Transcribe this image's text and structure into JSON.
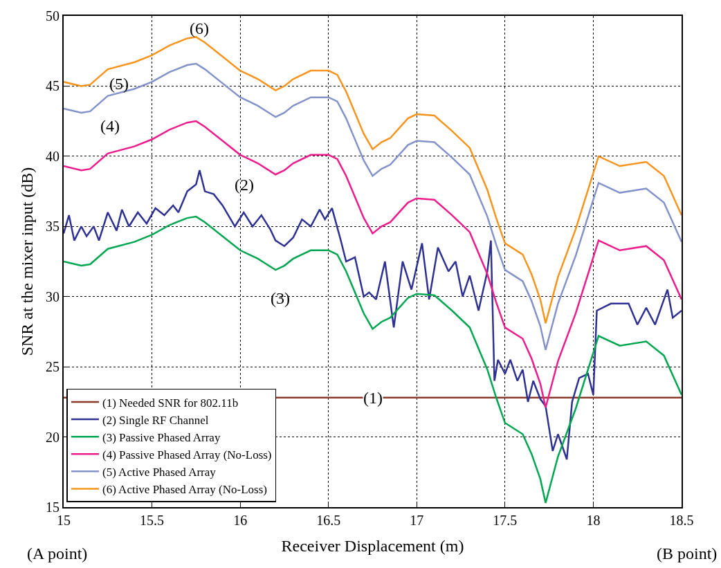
{
  "chart_data": {
    "type": "line",
    "xlabel": "Receiver Displacement (m)",
    "ylabel": "SNR at the mixer input (dB)",
    "x": [
      15.0,
      15.1,
      15.15,
      15.25,
      15.4,
      15.5,
      15.6,
      15.7,
      15.75,
      15.8,
      15.9,
      16.0,
      16.05,
      16.1,
      16.15,
      16.2,
      16.25,
      16.3,
      16.4,
      16.5,
      16.55,
      16.6,
      16.7,
      16.75,
      16.8,
      16.85,
      16.95,
      17.0,
      17.1,
      17.2,
      17.3,
      17.4,
      17.45,
      17.5,
      17.6,
      17.65,
      17.7,
      17.73,
      17.8,
      17.9,
      18.0,
      18.03,
      18.15,
      18.3,
      18.4,
      18.5
    ],
    "series": [
      {
        "name": "(1) Needed SNR for 802.11b",
        "color": "#8b3a2a",
        "x": [
          15.0,
          18.5
        ],
        "values": [
          22.8,
          22.8
        ]
      },
      {
        "name": "(2) Single RF Channel",
        "color": "#2e3192",
        "x": [
          15.0,
          15.03,
          15.06,
          15.1,
          15.13,
          15.17,
          15.2,
          15.25,
          15.3,
          15.33,
          15.37,
          15.42,
          15.47,
          15.52,
          15.57,
          15.62,
          15.65,
          15.7,
          15.75,
          15.77,
          15.8,
          15.85,
          15.9,
          15.97,
          16.02,
          16.07,
          16.12,
          16.17,
          16.2,
          16.25,
          16.3,
          16.35,
          16.4,
          16.45,
          16.48,
          16.52,
          16.57,
          16.6,
          16.65,
          16.7,
          16.73,
          16.77,
          16.82,
          16.87,
          16.92,
          16.97,
          17.03,
          17.07,
          17.12,
          17.18,
          17.22,
          17.26,
          17.3,
          17.35,
          17.4,
          17.42,
          17.44,
          17.46,
          17.5,
          17.53,
          17.57,
          17.6,
          17.63,
          17.66,
          17.7,
          17.73,
          17.75,
          17.77,
          17.8,
          17.82,
          17.85,
          17.88,
          17.92,
          17.97,
          18.0,
          18.02,
          18.1,
          18.2,
          18.25,
          18.3,
          18.35,
          18.42,
          18.45,
          18.5
        ],
        "values": [
          34.5,
          35.8,
          34.0,
          35.0,
          34.3,
          35.0,
          34.0,
          36.0,
          34.7,
          36.2,
          35.0,
          36.0,
          35.2,
          36.3,
          35.8,
          36.5,
          36.0,
          37.5,
          38.0,
          39.0,
          37.5,
          37.3,
          36.5,
          35.0,
          36.0,
          35.0,
          35.8,
          34.8,
          34.0,
          33.6,
          34.2,
          35.5,
          35.0,
          36.2,
          35.5,
          36.3,
          34.0,
          32.5,
          32.8,
          30.0,
          30.3,
          29.8,
          32.5,
          27.8,
          32.5,
          30.5,
          33.8,
          29.8,
          33.5,
          31.8,
          32.5,
          30.0,
          31.5,
          29.0,
          31.8,
          34.0,
          24.0,
          25.5,
          24.5,
          25.5,
          24.0,
          24.8,
          22.5,
          24.0,
          22.7,
          22.2,
          20.6,
          19.0,
          20.2,
          19.5,
          18.4,
          22.5,
          24.2,
          24.5,
          23.0,
          29.0,
          29.5,
          29.5,
          28.0,
          29.2,
          28.0,
          30.5,
          28.5,
          29.0
        ]
      },
      {
        "name": "(3) Passive Phased Array",
        "color": "#00a650",
        "values": [
          32.5,
          32.2,
          32.3,
          33.4,
          33.9,
          34.4,
          35.1,
          35.6,
          35.7,
          35.3,
          34.3,
          33.3,
          33.0,
          32.7,
          32.3,
          31.9,
          32.2,
          32.7,
          33.3,
          33.3,
          33.0,
          31.8,
          28.8,
          27.7,
          28.2,
          28.5,
          29.9,
          30.2,
          30.1,
          29.0,
          27.8,
          24.8,
          22.8,
          21.0,
          20.2,
          18.8,
          17.0,
          15.3,
          18.6,
          22.0,
          26.0,
          27.2,
          26.5,
          26.8,
          25.8,
          23.0
        ]
      },
      {
        "name": "(4) Passive Phased Array (No-Loss)",
        "color": "#ec1c8c",
        "values": [
          39.3,
          39.0,
          39.1,
          40.2,
          40.7,
          41.2,
          41.9,
          42.4,
          42.5,
          42.1,
          41.1,
          40.1,
          39.8,
          39.5,
          39.1,
          38.7,
          39.0,
          39.5,
          40.1,
          40.1,
          39.8,
          38.6,
          35.6,
          34.5,
          35.0,
          35.3,
          36.7,
          37.0,
          36.9,
          35.8,
          34.6,
          31.6,
          29.6,
          27.8,
          27.0,
          25.6,
          23.8,
          22.1,
          25.4,
          28.8,
          32.8,
          34.0,
          33.3,
          33.6,
          32.6,
          29.8
        ]
      },
      {
        "name": "(5) Active Phased Array",
        "color": "#8393c9",
        "values": [
          43.4,
          43.1,
          43.2,
          44.3,
          44.8,
          45.3,
          46.0,
          46.5,
          46.6,
          46.2,
          45.2,
          44.2,
          43.9,
          43.6,
          43.2,
          42.8,
          43.1,
          43.6,
          44.2,
          44.2,
          43.9,
          42.7,
          39.7,
          38.6,
          39.1,
          39.4,
          40.8,
          41.1,
          41.0,
          39.9,
          38.7,
          35.7,
          33.7,
          31.9,
          31.1,
          29.7,
          27.9,
          26.2,
          29.5,
          32.9,
          36.9,
          38.1,
          37.4,
          37.7,
          36.7,
          33.9
        ]
      },
      {
        "name": "(6) Active Phased Array (No-Loss)",
        "color": "#f7941d",
        "values": [
          45.3,
          45.0,
          45.1,
          46.2,
          46.7,
          47.2,
          47.9,
          48.4,
          48.5,
          48.1,
          47.1,
          46.1,
          45.8,
          45.5,
          45.1,
          44.7,
          45.0,
          45.5,
          46.1,
          46.1,
          45.8,
          44.6,
          41.6,
          40.5,
          41.0,
          41.3,
          42.7,
          43.0,
          42.9,
          41.8,
          40.6,
          37.6,
          35.6,
          33.8,
          33.0,
          31.6,
          29.8,
          28.1,
          31.4,
          34.8,
          38.8,
          40.0,
          39.3,
          39.6,
          38.6,
          35.8
        ]
      }
    ],
    "annotations": [
      "(1)",
      "(2)",
      "(3)",
      "(4)",
      "(5)",
      "(6)",
      "(A point)",
      "(B point)"
    ],
    "xlim": [
      15,
      18.5
    ],
    "xticks": [
      15,
      15.5,
      16,
      16.5,
      17,
      17.5,
      18,
      18.5
    ],
    "ylim": [
      15,
      50
    ],
    "yticks": [
      15,
      20,
      25,
      30,
      35,
      40,
      45,
      50
    ],
    "grid": true,
    "legend": "bottom left",
    "line_style": "solid",
    "marker": "none"
  }
}
